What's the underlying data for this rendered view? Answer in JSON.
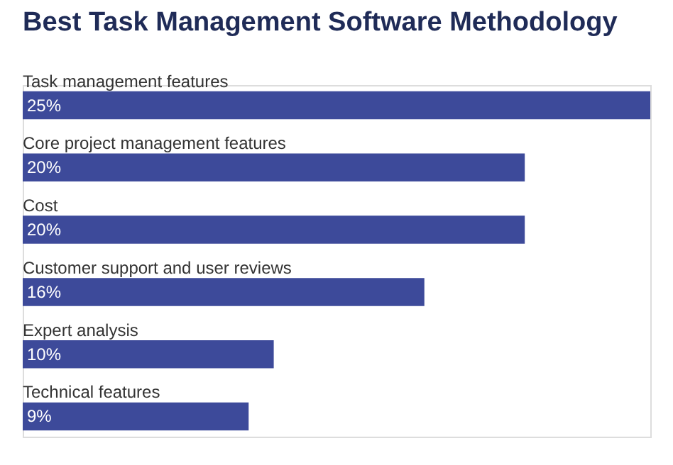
{
  "chart_data": {
    "type": "bar",
    "orientation": "horizontal",
    "title": "Best Task Management Software Methodology",
    "categories": [
      "Task management features",
      "Core project management features",
      "Cost",
      "Customer support and user reviews",
      "Expert analysis",
      "Technical features"
    ],
    "series": [
      {
        "color": "#3d4a9a",
        "values": [
          25,
          20,
          20,
          16,
          10,
          9
        ],
        "value_labels": [
          "25%",
          "20%",
          "20%",
          "16%",
          "10%",
          "9%"
        ]
      }
    ]
  }
}
